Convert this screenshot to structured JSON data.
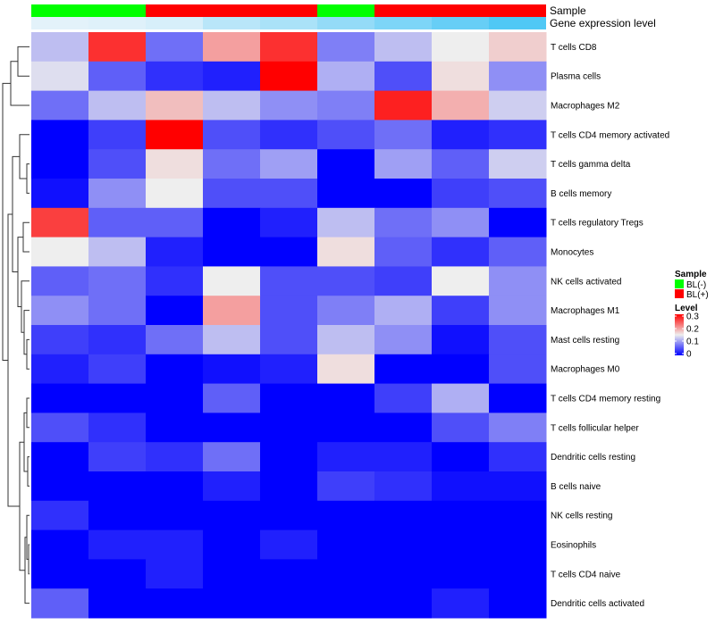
{
  "chart_data": {
    "type": "heatmap",
    "annotation_tracks": [
      {
        "name": "Sample",
        "values": [
          "BL(-)",
          "BL(-)",
          "BL(+)",
          "BL(+)",
          "BL(+)",
          "BL(-)",
          "BL(+)",
          "BL(+)",
          "BL(+)"
        ]
      },
      {
        "name": "Gene expression level",
        "values": [
          0.02,
          0.05,
          0.1,
          0.3,
          0.4,
          0.55,
          0.7,
          0.85,
          1.0
        ]
      }
    ],
    "rows": [
      "T cells CD8",
      "Plasma cells",
      "Macrophages M2",
      "T cells CD4 memory activated",
      "T cells gamma delta",
      "B cells memory",
      "T cells regulatory  Tregs",
      "Monocytes",
      "NK cells activated",
      "Macrophages M1",
      "Mast cells resting",
      "Macrophages M0",
      "T cells CD4 memory resting",
      "T cells follicular helper",
      "Dendritic cells resting",
      "B cells naive",
      "NK cells resting",
      "Eosinophils",
      "T cells CD4 naive",
      "Dendritic cells activated"
    ],
    "values": [
      [
        0.12,
        0.27,
        0.07,
        0.2,
        0.27,
        0.08,
        0.12,
        0.15,
        0.17
      ],
      [
        0.14,
        0.06,
        0.03,
        0.02,
        0.3,
        0.11,
        0.05,
        0.16,
        0.09
      ],
      [
        0.07,
        0.12,
        0.18,
        0.12,
        0.09,
        0.08,
        0.28,
        0.19,
        0.13
      ],
      [
        0.0,
        0.04,
        0.3,
        0.05,
        0.03,
        0.05,
        0.07,
        0.02,
        0.03
      ],
      [
        0.0,
        0.05,
        0.16,
        0.07,
        0.1,
        0.0,
        0.1,
        0.06,
        0.13
      ],
      [
        0.01,
        0.09,
        0.15,
        0.05,
        0.05,
        0.0,
        0.0,
        0.04,
        0.05
      ],
      [
        0.26,
        0.06,
        0.06,
        0.0,
        0.02,
        0.12,
        0.07,
        0.09,
        0.0
      ],
      [
        0.15,
        0.12,
        0.02,
        0.0,
        0.0,
        0.16,
        0.06,
        0.03,
        0.06
      ],
      [
        0.06,
        0.07,
        0.03,
        0.15,
        0.05,
        0.05,
        0.04,
        0.15,
        0.09
      ],
      [
        0.09,
        0.07,
        0.0,
        0.2,
        0.05,
        0.08,
        0.11,
        0.04,
        0.09
      ],
      [
        0.04,
        0.03,
        0.07,
        0.12,
        0.05,
        0.12,
        0.09,
        0.01,
        0.05
      ],
      [
        0.02,
        0.04,
        0.0,
        0.01,
        0.02,
        0.16,
        0.0,
        0.0,
        0.05
      ],
      [
        0.0,
        0.0,
        0.0,
        0.06,
        0.0,
        0.0,
        0.04,
        0.11,
        0.0
      ],
      [
        0.05,
        0.03,
        0.0,
        0.0,
        0.0,
        0.0,
        0.0,
        0.05,
        0.08
      ],
      [
        0.0,
        0.04,
        0.03,
        0.07,
        0.0,
        0.02,
        0.02,
        0.0,
        0.03
      ],
      [
        0.0,
        0.0,
        0.0,
        0.02,
        0.0,
        0.04,
        0.03,
        0.01,
        0.01
      ],
      [
        0.03,
        0.0,
        0.0,
        0.0,
        0.0,
        0.0,
        0.0,
        0.0,
        0.0
      ],
      [
        0.0,
        0.02,
        0.02,
        0.0,
        0.02,
        0.0,
        0.0,
        0.0,
        0.0
      ],
      [
        0.0,
        0.0,
        0.02,
        0.0,
        0.0,
        0.0,
        0.0,
        0.0,
        0.0
      ],
      [
        0.06,
        0.0,
        0.0,
        0.0,
        0.0,
        0.0,
        0.0,
        0.02,
        0.0
      ]
    ],
    "color_scale": {
      "min": 0,
      "mid": 0.15,
      "max": 0.3,
      "low_color": "#0000ff",
      "mid_color": "#eeeeee",
      "high_color": "#ff0000"
    },
    "legend": {
      "placement": "right",
      "sample_title": "Sample",
      "sample_entries": [
        {
          "label": "BL(-)",
          "color": "#00ff00"
        },
        {
          "label": "BL(+)",
          "color": "#ff0000"
        }
      ],
      "level_title": "Level",
      "level_ticks": [
        "0.3",
        "0.2",
        "0.1",
        "0"
      ]
    },
    "row_dendrogram": true
  }
}
